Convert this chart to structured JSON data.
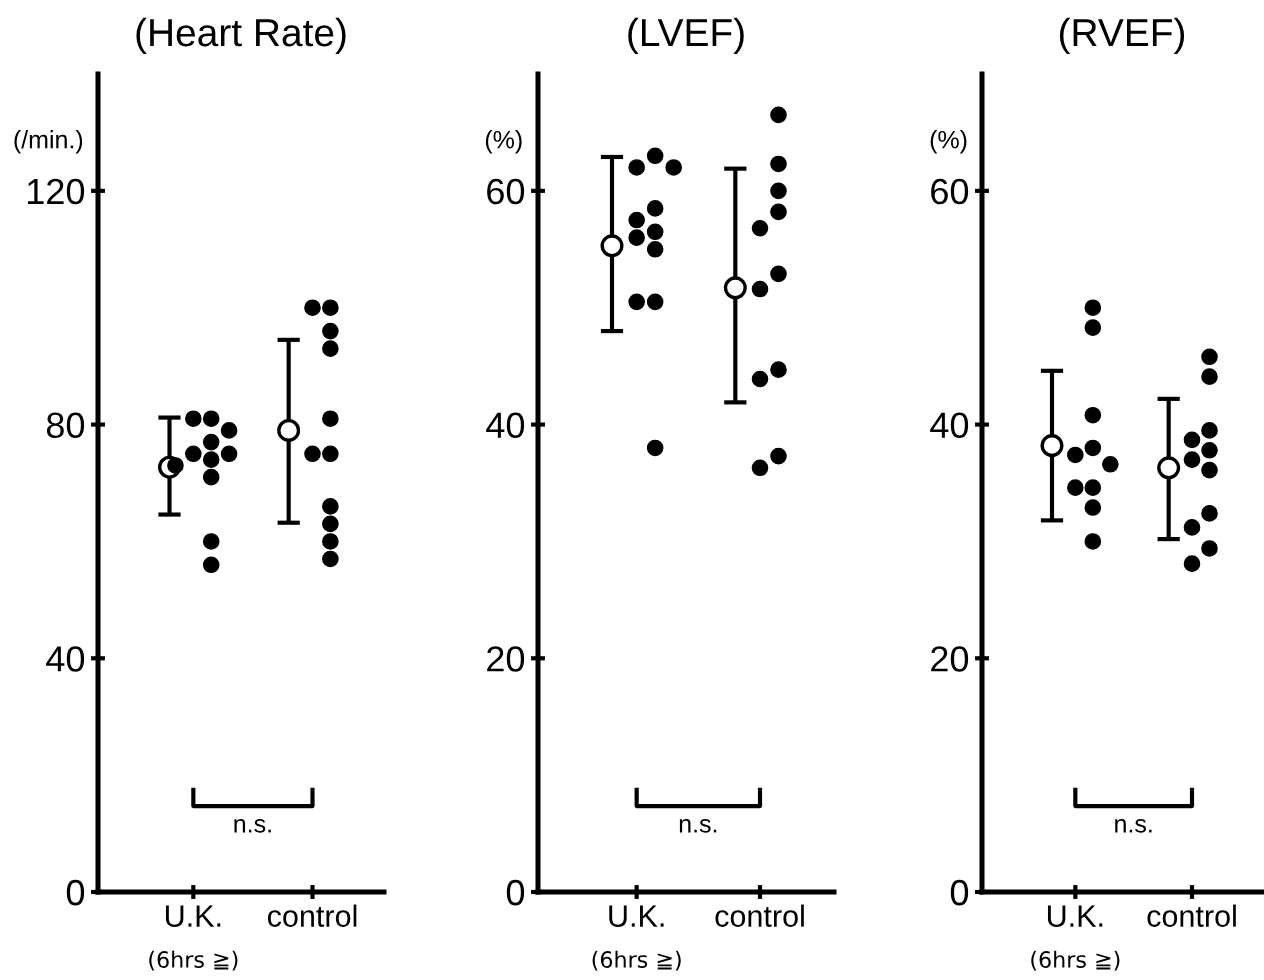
{
  "chart_data": [
    {
      "type": "scatter",
      "title": "(Heart Rate)",
      "ylabel": "(/min.)",
      "categories": [
        "U.K.",
        "control"
      ],
      "ylim": [
        0,
        140
      ],
      "yticks": [
        0,
        40,
        80,
        120
      ],
      "grid": false,
      "marker": "circle",
      "annotations": [
        "n.s.",
        "(6hrs ≧)"
      ],
      "series": [
        {
          "color": "#000000",
          "x": [
            "U.K.",
            "control"
          ],
          "values": [
            72.7,
            79
          ],
          "errors": [
            [
              64.6,
              81.2
            ],
            [
              63.2,
              94.5
            ]
          ]
        },
        {
          "color": "#000000",
          "x": [
            "U.K.",
            "U.K.",
            "U.K.",
            "U.K.",
            "U.K.",
            "U.K.",
            "U.K.",
            "U.K.",
            "U.K.",
            "U.K.",
            "U.K.",
            "control",
            "control",
            "control",
            "control",
            "control",
            "control",
            "control",
            "control",
            "control",
            "control",
            "control"
          ],
          "values": [
            81,
            81,
            79,
            77,
            75,
            75,
            74,
            73,
            71,
            60,
            56,
            100,
            100,
            96,
            93,
            81,
            75,
            75,
            66,
            63,
            60,
            57
          ]
        }
      ]
    },
    {
      "type": "scatter",
      "title": "(LVEF)",
      "ylabel": "(%)",
      "categories": [
        "U.K.",
        "control"
      ],
      "ylim": [
        0,
        70
      ],
      "yticks": [
        0,
        20,
        40,
        60
      ],
      "grid": false,
      "marker": "circle",
      "annotations": [
        "n.s.",
        "(6hrs ≧)"
      ],
      "series": [
        {
          "color": "#000000",
          "x": [
            "U.K.",
            "control"
          ],
          "values": [
            55.3,
            51.7
          ],
          "errors": [
            [
              48,
              62.9
            ],
            [
              41.9,
              61.9
            ]
          ]
        },
        {
          "color": "#000000",
          "x": [
            "U.K.",
            "U.K.",
            "U.K.",
            "U.K.",
            "U.K.",
            "U.K.",
            "U.K.",
            "U.K.",
            "U.K.",
            "U.K.",
            "U.K.",
            "control",
            "control",
            "control",
            "control",
            "control",
            "control",
            "control",
            "control",
            "control",
            "control",
            "control"
          ],
          "values": [
            63,
            62,
            62,
            58.5,
            57.5,
            56.5,
            56,
            55,
            50.5,
            50.5,
            38,
            66.5,
            62.3,
            60,
            58.2,
            56.8,
            52.9,
            51.6,
            44.7,
            43.9,
            37.3,
            36.3
          ]
        }
      ]
    },
    {
      "type": "scatter",
      "title": "(RVEF)",
      "ylabel": "(%)",
      "categories": [
        "U.K.",
        "control"
      ],
      "ylim": [
        0,
        70
      ],
      "yticks": [
        0,
        20,
        40,
        60
      ],
      "grid": false,
      "marker": "circle",
      "annotations": [
        "n.s.",
        "(6hrs ≧)"
      ],
      "series": [
        {
          "color": "#000000",
          "x": [
            "U.K.",
            "control"
          ],
          "values": [
            38.2,
            36.3
          ],
          "errors": [
            [
              31.8,
              44.6
            ],
            [
              30.2,
              42.2
            ]
          ]
        },
        {
          "color": "#000000",
          "x": [
            "U.K.",
            "U.K.",
            "U.K.",
            "U.K.",
            "U.K.",
            "U.K.",
            "U.K.",
            "U.K.",
            "U.K.",
            "U.K.",
            "control",
            "control",
            "control",
            "control",
            "control",
            "control",
            "control",
            "control",
            "control",
            "control",
            "control"
          ],
          "values": [
            50,
            48.3,
            40.8,
            38,
            37.4,
            36.6,
            34.6,
            34.6,
            32.9,
            30,
            45.8,
            44.1,
            39.5,
            38.7,
            37.8,
            37,
            36.1,
            32.4,
            31.2,
            29.4,
            28.1
          ]
        }
      ]
    }
  ]
}
